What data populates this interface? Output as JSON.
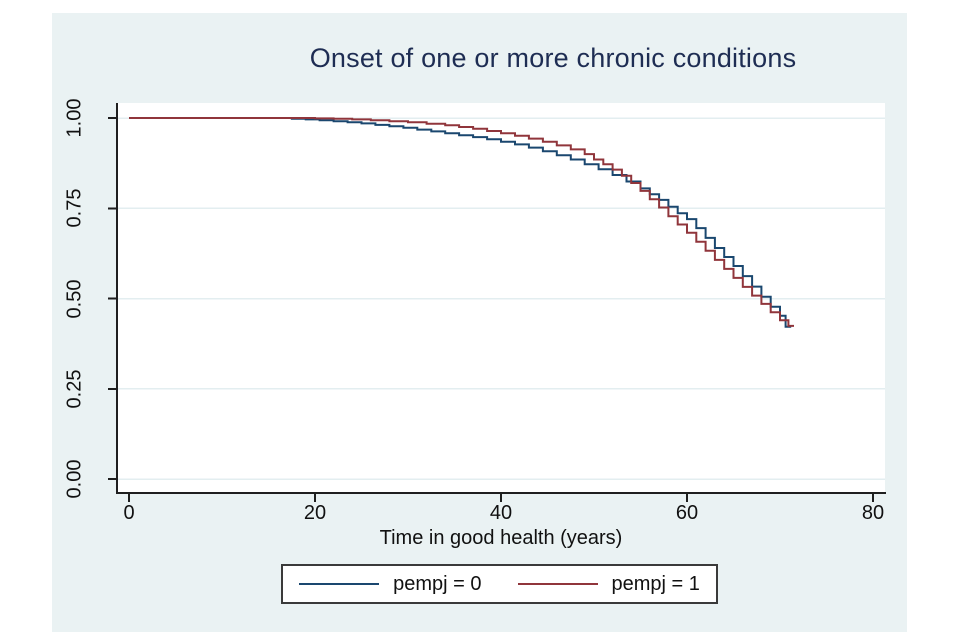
{
  "title": "Onset of one or more chronic conditions",
  "colors": {
    "outer_background": "#eaf2f3",
    "plot_background": "#ffffff",
    "gridline": "#e3eef0",
    "axis": "#1f1f1f",
    "title_text": "#1e2d53",
    "tick_text": "#111111",
    "navy": "#1a476f",
    "maroon": "#90353b"
  },
  "chart_data": {
    "type": "line",
    "subtype": "kaplan-meier-step-survival",
    "title": "Onset of one or more chronic conditions",
    "xlabel": "Time in good health (years)",
    "ylabel": "",
    "xlim": [
      0,
      80
    ],
    "ylim": [
      0.0,
      1.0
    ],
    "x_ticks": [
      0,
      20,
      40,
      60,
      80
    ],
    "x_tick_labels": [
      "0",
      "20",
      "40",
      "60",
      "80"
    ],
    "y_ticks": [
      0.0,
      0.25,
      0.5,
      0.75,
      1.0
    ],
    "y_tick_labels": [
      "0.00",
      "0.25",
      "0.50",
      "0.75",
      "1.00"
    ],
    "grid": true,
    "y_tick_rotation": 90,
    "legend_position": "bottom-center-boxed",
    "series": [
      {
        "name": "pempj = 0",
        "color": "#1a476f",
        "end_t": 71.2,
        "steps": [
          [
            0,
            1.0
          ],
          [
            17.5,
            0.998
          ],
          [
            19,
            0.996
          ],
          [
            20.5,
            0.994
          ],
          [
            22,
            0.991
          ],
          [
            23.5,
            0.988
          ],
          [
            25,
            0.985
          ],
          [
            26.5,
            0.981
          ],
          [
            28,
            0.977
          ],
          [
            29.5,
            0.973
          ],
          [
            31,
            0.968
          ],
          [
            32.5,
            0.963
          ],
          [
            34,
            0.958
          ],
          [
            35.5,
            0.952
          ],
          [
            37,
            0.947
          ],
          [
            38.5,
            0.941
          ],
          [
            40,
            0.934
          ],
          [
            41.5,
            0.927
          ],
          [
            43,
            0.918
          ],
          [
            44.5,
            0.908
          ],
          [
            46,
            0.897
          ],
          [
            47.5,
            0.885
          ],
          [
            49,
            0.872
          ],
          [
            50.5,
            0.858
          ],
          [
            52,
            0.842
          ],
          [
            53.5,
            0.824
          ],
          [
            55,
            0.805
          ],
          [
            56,
            0.789
          ],
          [
            57,
            0.773
          ],
          [
            58,
            0.754
          ],
          [
            59,
            0.736
          ],
          [
            60,
            0.72
          ],
          [
            61,
            0.695
          ],
          [
            62,
            0.668
          ],
          [
            63,
            0.64
          ],
          [
            64,
            0.615
          ],
          [
            65,
            0.59
          ],
          [
            66,
            0.562
          ],
          [
            67,
            0.533
          ],
          [
            68,
            0.505
          ],
          [
            69,
            0.477
          ],
          [
            70,
            0.452
          ],
          [
            70.6,
            0.422
          ]
        ]
      },
      {
        "name": "pempj = 1",
        "color": "#90353b",
        "end_t": 71.5,
        "steps": [
          [
            0,
            1.0
          ],
          [
            20,
            0.999
          ],
          [
            22,
            0.998
          ],
          [
            24,
            0.996
          ],
          [
            26,
            0.994
          ],
          [
            28,
            0.991
          ],
          [
            30,
            0.988
          ],
          [
            32,
            0.984
          ],
          [
            34,
            0.98
          ],
          [
            35.5,
            0.975
          ],
          [
            37,
            0.97
          ],
          [
            38.5,
            0.964
          ],
          [
            40,
            0.958
          ],
          [
            41.5,
            0.951
          ],
          [
            43,
            0.943
          ],
          [
            44.5,
            0.934
          ],
          [
            46,
            0.924
          ],
          [
            47.5,
            0.913
          ],
          [
            49,
            0.9
          ],
          [
            50,
            0.885
          ],
          [
            51,
            0.872
          ],
          [
            52,
            0.857
          ],
          [
            53,
            0.84
          ],
          [
            54,
            0.82
          ],
          [
            55,
            0.798
          ],
          [
            56,
            0.775
          ],
          [
            57,
            0.752
          ],
          [
            58,
            0.728
          ],
          [
            59,
            0.705
          ],
          [
            60,
            0.682
          ],
          [
            61,
            0.657
          ],
          [
            62,
            0.632
          ],
          [
            63,
            0.607
          ],
          [
            64,
            0.582
          ],
          [
            65,
            0.557
          ],
          [
            66,
            0.532
          ],
          [
            67,
            0.508
          ],
          [
            68,
            0.485
          ],
          [
            69,
            0.462
          ],
          [
            70,
            0.44
          ],
          [
            70.9,
            0.424
          ]
        ]
      }
    ]
  }
}
